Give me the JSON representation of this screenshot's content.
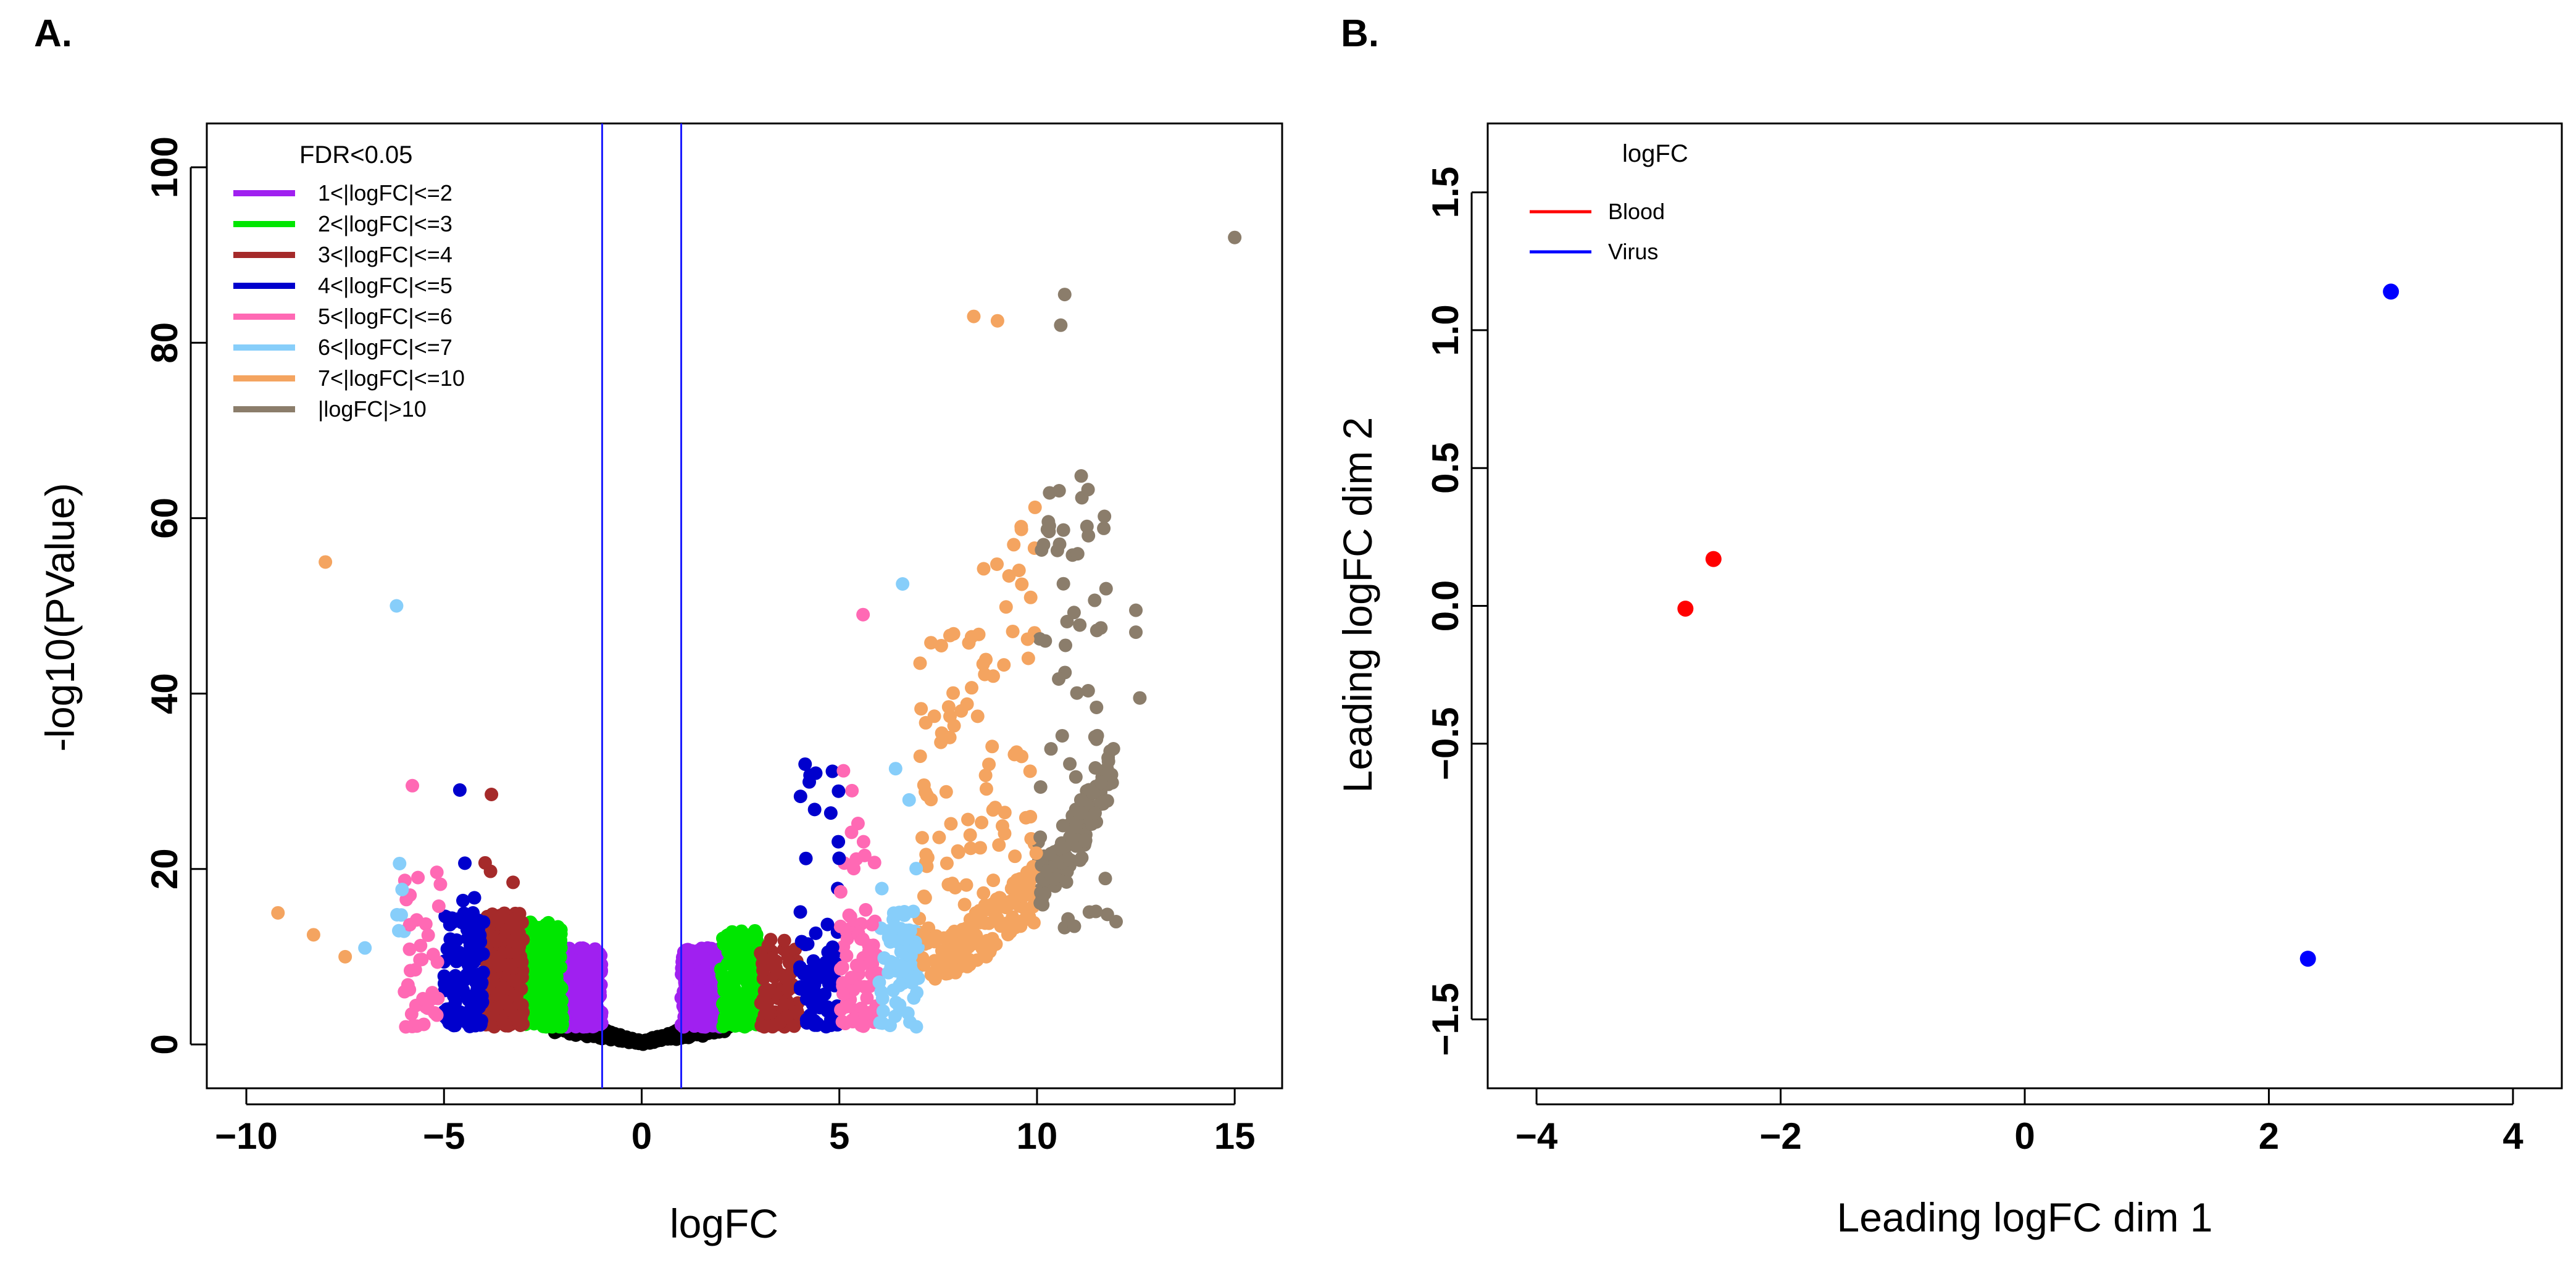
{
  "chart_data": [
    {
      "panel": "A.",
      "type": "scatter",
      "title": "",
      "xlabel": "logFC",
      "ylabel": "-log10(PValue)",
      "xlim": [
        -11,
        16.2
      ],
      "ylim": [
        -5,
        105
      ],
      "xticks": [
        -10,
        -5,
        0,
        5,
        10,
        15
      ],
      "yticks": [
        0,
        20,
        40,
        60,
        80,
        100
      ],
      "threshold_lines_x": [
        -1,
        1
      ],
      "threshold_line_color": "#1a1aff",
      "legend": {
        "title": "FDR<0.05",
        "position": "top-left",
        "entries": [
          {
            "label": "1<|logFC|<=2",
            "color": "#a020f0"
          },
          {
            "label": "2<|logFC|<=3",
            "color": "#00e600"
          },
          {
            "label": "3<|logFC|<=4",
            "color": "#a52a2a"
          },
          {
            "label": "4<|logFC|<=5",
            "color": "#0000cd"
          },
          {
            "label": "5<|logFC|<=6",
            "color": "#ff69b4"
          },
          {
            "label": "6<|logFC|<=7",
            "color": "#87cefa"
          },
          {
            "label": "7<|logFC|<=10",
            "color": "#f4a460"
          },
          {
            "label": "|logFC|>10",
            "color": "#8b7d6b"
          }
        ]
      },
      "nonsig_color": "#000000",
      "series_note": "Thousands of genes; values approximated by band/envelope from the figure",
      "highlight_points": [
        {
          "x": 15.0,
          "y": 92,
          "color": "#8b7d6b"
        },
        {
          "x": -8.0,
          "y": 55,
          "color": "#f4a460"
        },
        {
          "x": -6.2,
          "y": 50,
          "color": "#87cefa"
        },
        {
          "x": -9.2,
          "y": 15,
          "color": "#f4a460"
        },
        {
          "x": -8.3,
          "y": 12.5,
          "color": "#f4a460"
        },
        {
          "x": -7.0,
          "y": 11,
          "color": "#87cefa"
        },
        {
          "x": -7.5,
          "y": 10,
          "color": "#f4a460"
        },
        {
          "x": -4.6,
          "y": 29,
          "color": "#0000cd"
        },
        {
          "x": -3.8,
          "y": 28.5,
          "color": "#a52a2a"
        },
        {
          "x": -5.8,
          "y": 29.5,
          "color": "#ff69b4"
        },
        {
          "x": 8.4,
          "y": 83,
          "color": "#f4a460"
        },
        {
          "x": 9.0,
          "y": 82.5,
          "color": "#f4a460"
        },
        {
          "x": 10.7,
          "y": 85.5,
          "color": "#8b7d6b"
        },
        {
          "x": 10.6,
          "y": 82,
          "color": "#8b7d6b"
        },
        {
          "x": 6.6,
          "y": 52.5,
          "color": "#87cefa"
        },
        {
          "x": 5.6,
          "y": 49,
          "color": "#ff69b4"
        },
        {
          "x": 11.3,
          "y": 58,
          "color": "#8b7d6b"
        },
        {
          "x": 12.5,
          "y": 49.5,
          "color": "#8b7d6b"
        },
        {
          "x": 12.5,
          "y": 47,
          "color": "#8b7d6b"
        },
        {
          "x": 12.6,
          "y": 39.5,
          "color": "#8b7d6b"
        },
        {
          "x": 12.0,
          "y": 14,
          "color": "#8b7d6b"
        }
      ]
    },
    {
      "panel": "B.",
      "type": "scatter",
      "title": "",
      "xlabel": "Leading logFC dim 1",
      "ylabel": "Leading logFC dim 2",
      "xlim": [
        -4.4,
        4.4
      ],
      "ylim": [
        -1.75,
        1.75
      ],
      "xticks": [
        -4,
        -2,
        0,
        2,
        4
      ],
      "yticks": [
        -1.5,
        -0.5,
        0.0,
        0.5,
        1.0,
        1.5
      ],
      "ytick_labels": [
        "−1.5",
        "−0.5",
        "0.0",
        "0.5",
        "1.0",
        "1.5"
      ],
      "xtick_labels": [
        "−4",
        "−2",
        "0",
        "2",
        "4"
      ],
      "legend": {
        "title": "logFC",
        "position": "top-left",
        "entries": [
          {
            "label": "Blood",
            "color": "#ff0000"
          },
          {
            "label": "Virus",
            "color": "#0000ff"
          }
        ]
      },
      "points": [
        {
          "x": -2.78,
          "y": -0.01,
          "group": "Blood",
          "color": "#ff0000"
        },
        {
          "x": -2.55,
          "y": 0.17,
          "group": "Blood",
          "color": "#ff0000"
        },
        {
          "x": 3.0,
          "y": 1.14,
          "group": "Virus",
          "color": "#0000ff"
        },
        {
          "x": 2.32,
          "y": -1.28,
          "group": "Virus",
          "color": "#0000ff"
        }
      ]
    }
  ],
  "tick_labels_A": {
    "x": [
      "−10",
      "−5",
      "0",
      "5",
      "10",
      "15"
    ],
    "y": [
      "0",
      "20",
      "40",
      "60",
      "80",
      "100"
    ]
  }
}
